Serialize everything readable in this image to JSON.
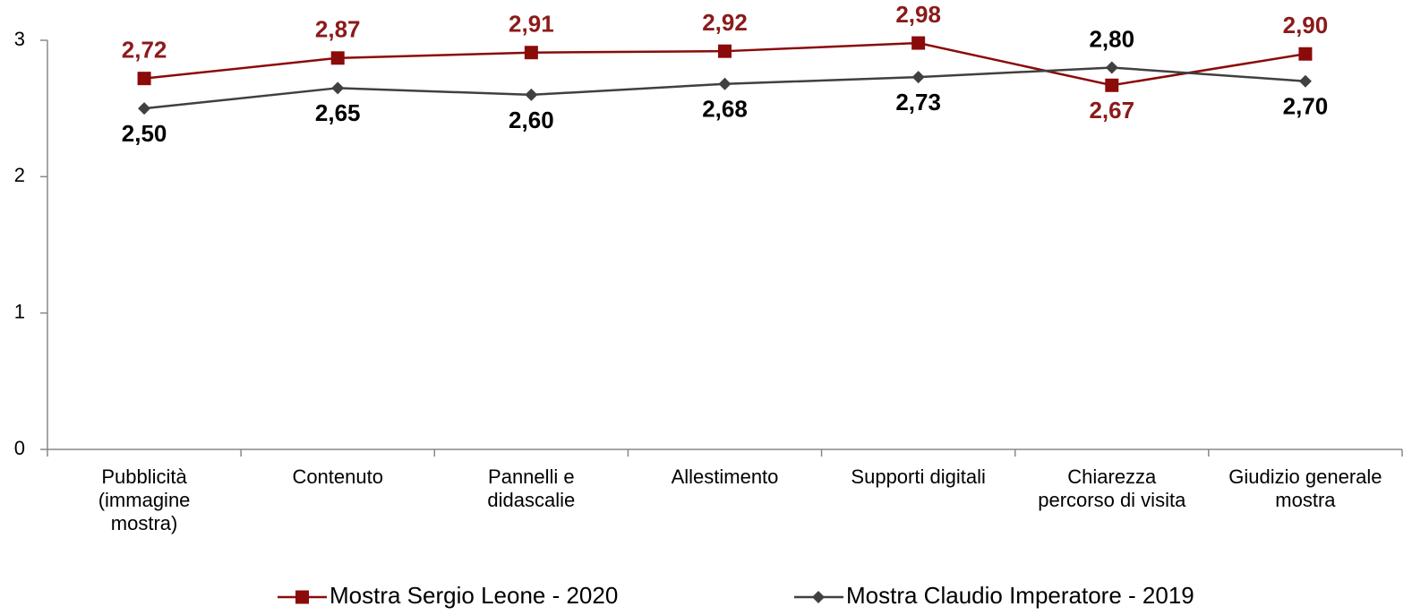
{
  "chart_data": {
    "type": "line",
    "categories": [
      "Pubblicità\n(immagine\nmostra)",
      "Contenuto",
      "Pannelli e\ndidascalie",
      "Allestimento",
      "Supporti digitali",
      "Chiarezza\npercorso di visita",
      "Giudizio generale\nmostra"
    ],
    "series": [
      {
        "name": "Mostra Sergio Leone - 2020",
        "color": "#8b0a0a",
        "label_color": "#8b1a1a",
        "marker": "square",
        "values": [
          2.72,
          2.87,
          2.91,
          2.92,
          2.98,
          2.67,
          2.9
        ],
        "value_labels": [
          "2,72",
          "2,87",
          "2,91",
          "2,92",
          "2,98",
          "2,67",
          "2,90"
        ]
      },
      {
        "name": "Mostra Claudio Imperatore - 2019",
        "color": "#404040",
        "label_color": "#000000",
        "marker": "diamond",
        "values": [
          2.5,
          2.65,
          2.6,
          2.68,
          2.73,
          2.8,
          2.7
        ],
        "value_labels": [
          "2,50",
          "2,65",
          "2,60",
          "2,68",
          "2,73",
          "2,80",
          "2,70"
        ]
      }
    ],
    "ylim": [
      0,
      3
    ],
    "yticks": [
      0,
      1,
      2,
      3
    ],
    "grid": false,
    "legend": "bottom"
  }
}
